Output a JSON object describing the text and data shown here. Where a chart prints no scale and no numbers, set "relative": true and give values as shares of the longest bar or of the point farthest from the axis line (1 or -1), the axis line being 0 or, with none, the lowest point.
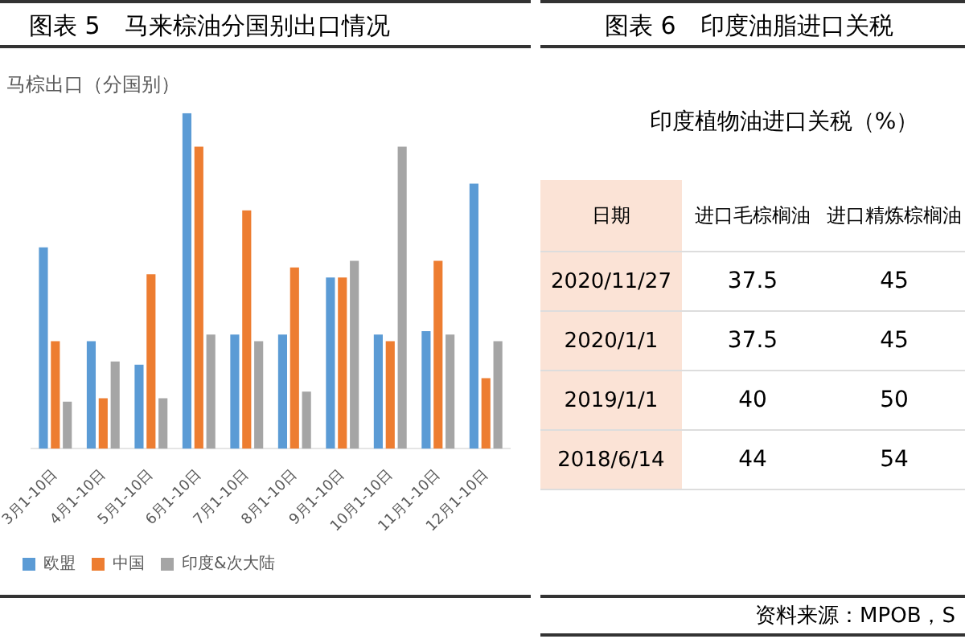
{
  "chart_data": [
    {
      "type": "bar",
      "title": "图表 5　马来棕油分国别出口情况",
      "subtitle": "马棕出口（分国别）",
      "relative": true,
      "legend": "bottom",
      "categories": [
        "3月1-10日",
        "4月1-10日",
        "5月1-10日",
        "6月1-10日",
        "7月1-10日",
        "8月1-10日",
        "9月1-10日",
        "10月1-10日",
        "11月1-10日",
        "12月1-10日"
      ],
      "series": [
        {
          "name": "欧盟",
          "color": "#5b9bd5",
          "values": [
            0.6,
            0.32,
            0.25,
            1,
            0.34,
            0.34,
            0.51,
            0.34,
            0.35,
            0.79
          ]
        },
        {
          "name": "中国",
          "color": "#ed7d31",
          "values": [
            0.32,
            0.15,
            0.52,
            0.9,
            0.71,
            0.54,
            0.51,
            0.32,
            0.56,
            0.21
          ]
        },
        {
          "name": "印度&次大陆",
          "color": "#a5a5a5",
          "values": [
            0.14,
            0.26,
            0.15,
            0.34,
            0.32,
            0.17,
            0.56,
            0.9,
            0.34,
            0.32
          ]
        }
      ]
    },
    {
      "type": "other",
      "title": "图表 6　印度油脂进口关税",
      "subtitle": "印度植物油进口关税（%）",
      "categories": [
        "日期",
        "进口毛棕榈油",
        "进口精炼棕榈油"
      ],
      "y_categories": [
        "2020/11/27",
        "2020/1/1",
        "2019/1/1",
        "2018/6/14"
      ],
      "cell_labels": [
        [
          "37.5",
          "45"
        ],
        [
          "37.5",
          "45"
        ],
        [
          "40",
          "50"
        ],
        [
          "44",
          "54"
        ]
      ],
      "annotations": [
        "资料来源：MPOB，S"
      ]
    }
  ]
}
